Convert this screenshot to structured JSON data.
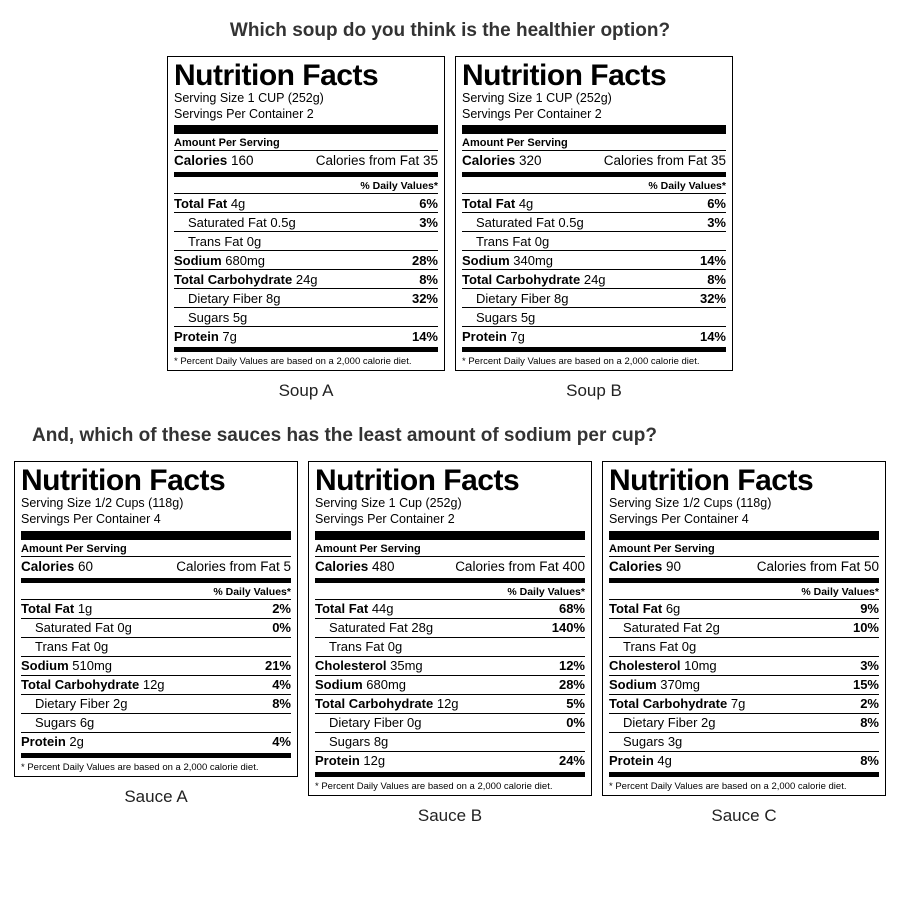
{
  "colors": {
    "text": "#000000",
    "bg": "#ffffff",
    "question": "#333333"
  },
  "q1": "Which soup do you think is the healthier option?",
  "q2": "And, which of these sauces has the least amount of sodium per cup?",
  "dv_header": "% Daily Values*",
  "amt_per": "Amount Per Serving",
  "footnote": "* Percent Daily Values are based on a 2,000 calorie diet.",
  "nf_title": "Nutrition Facts",
  "soups": [
    {
      "caption": "Soup A",
      "serving_size": "Serving Size 1 CUP (252g)",
      "servings_per": "Servings Per Container 2",
      "calories_label": "Calories",
      "calories": "160",
      "cal_fat": "Calories from Fat 35",
      "rows": [
        {
          "label": "Total Fat",
          "value": "4g",
          "dv": "6%",
          "bold": true,
          "indent": false,
          "rule": true
        },
        {
          "label": "Saturated Fat",
          "value": "0.5g",
          "dv": "3%",
          "bold": false,
          "indent": true,
          "rule": true
        },
        {
          "label": "Trans Fat",
          "value": "0g",
          "dv": "",
          "bold": false,
          "indent": true,
          "rule": true
        },
        {
          "label": "Sodium",
          "value": "680mg",
          "dv": "28%",
          "bold": true,
          "indent": false,
          "rule": true
        },
        {
          "label": "Total Carbohydrate",
          "value": "24g",
          "dv": "8%",
          "bold": true,
          "indent": false,
          "rule": true
        },
        {
          "label": "Dietary Fiber",
          "value": "8g",
          "dv": "32%",
          "bold": false,
          "indent": true,
          "rule": true
        },
        {
          "label": "Sugars",
          "value": "5g",
          "dv": "",
          "bold": false,
          "indent": true,
          "rule": true
        },
        {
          "label": "Protein",
          "value": "7g",
          "dv": "14%",
          "bold": true,
          "indent": false,
          "rule": false
        }
      ]
    },
    {
      "caption": "Soup B",
      "serving_size": "Serving Size 1 CUP (252g)",
      "servings_per": "Servings Per Container 2",
      "calories_label": "Calories",
      "calories": "320",
      "cal_fat": "Calories from Fat 35",
      "rows": [
        {
          "label": "Total Fat",
          "value": "4g",
          "dv": "6%",
          "bold": true,
          "indent": false,
          "rule": true
        },
        {
          "label": "Saturated Fat",
          "value": "0.5g",
          "dv": "3%",
          "bold": false,
          "indent": true,
          "rule": true
        },
        {
          "label": "Trans Fat",
          "value": "0g",
          "dv": "",
          "bold": false,
          "indent": true,
          "rule": true
        },
        {
          "label": "Sodium",
          "value": "340mg",
          "dv": "14%",
          "bold": true,
          "indent": false,
          "rule": true
        },
        {
          "label": "Total Carbohydrate",
          "value": "24g",
          "dv": "8%",
          "bold": true,
          "indent": false,
          "rule": true
        },
        {
          "label": "Dietary Fiber",
          "value": "8g",
          "dv": "32%",
          "bold": false,
          "indent": true,
          "rule": true
        },
        {
          "label": "Sugars",
          "value": "5g",
          "dv": "",
          "bold": false,
          "indent": true,
          "rule": true
        },
        {
          "label": "Protein",
          "value": "7g",
          "dv": "14%",
          "bold": true,
          "indent": false,
          "rule": false
        }
      ]
    }
  ],
  "sauces": [
    {
      "caption": "Sauce A",
      "serving_size": "Serving Size 1/2 Cups (118g)",
      "servings_per": "Servings Per Container 4",
      "calories_label": "Calories",
      "calories": "60",
      "cal_fat": "Calories from Fat 5",
      "rows": [
        {
          "label": "Total Fat",
          "value": "1g",
          "dv": "2%",
          "bold": true,
          "indent": false,
          "rule": true
        },
        {
          "label": "Saturated Fat",
          "value": "0g",
          "dv": "0%",
          "bold": false,
          "indent": true,
          "rule": true
        },
        {
          "label": "Trans Fat",
          "value": "0g",
          "dv": "",
          "bold": false,
          "indent": true,
          "rule": true
        },
        {
          "label": "Sodium",
          "value": "510mg",
          "dv": "21%",
          "bold": true,
          "indent": false,
          "rule": true
        },
        {
          "label": "Total Carbohydrate",
          "value": "12g",
          "dv": "4%",
          "bold": true,
          "indent": false,
          "rule": true
        },
        {
          "label": "Dietary Fiber",
          "value": "2g",
          "dv": "8%",
          "bold": false,
          "indent": true,
          "rule": true
        },
        {
          "label": "Sugars",
          "value": "6g",
          "dv": "",
          "bold": false,
          "indent": true,
          "rule": true
        },
        {
          "label": "Protein",
          "value": "2g",
          "dv": "4%",
          "bold": true,
          "indent": false,
          "rule": false
        }
      ]
    },
    {
      "caption": "Sauce B",
      "serving_size": "Serving Size 1 Cup (252g)",
      "servings_per": "Servings Per Container 2",
      "calories_label": "Calories",
      "calories": "480",
      "cal_fat": "Calories from Fat 400",
      "rows": [
        {
          "label": "Total Fat",
          "value": "44g",
          "dv": "68%",
          "bold": true,
          "indent": false,
          "rule": true
        },
        {
          "label": "Saturated Fat",
          "value": "28g",
          "dv": "140%",
          "bold": false,
          "indent": true,
          "rule": true
        },
        {
          "label": "Trans Fat",
          "value": "0g",
          "dv": "",
          "bold": false,
          "indent": true,
          "rule": true
        },
        {
          "label": "Cholesterol",
          "value": "35mg",
          "dv": "12%",
          "bold": true,
          "indent": false,
          "rule": true
        },
        {
          "label": "Sodium",
          "value": "680mg",
          "dv": "28%",
          "bold": true,
          "indent": false,
          "rule": true
        },
        {
          "label": "Total Carbohydrate",
          "value": "12g",
          "dv": "5%",
          "bold": true,
          "indent": false,
          "rule": true
        },
        {
          "label": "Dietary Fiber",
          "value": "0g",
          "dv": "0%",
          "bold": false,
          "indent": true,
          "rule": true
        },
        {
          "label": "Sugars",
          "value": "8g",
          "dv": "",
          "bold": false,
          "indent": true,
          "rule": true
        },
        {
          "label": "Protein",
          "value": "12g",
          "dv": "24%",
          "bold": true,
          "indent": false,
          "rule": false
        }
      ]
    },
    {
      "caption": "Sauce C",
      "serving_size": "Serving Size 1/2 Cups (118g)",
      "servings_per": "Servings Per Container 4",
      "calories_label": "Calories",
      "calories": "90",
      "cal_fat": "Calories from Fat 50",
      "rows": [
        {
          "label": "Total Fat",
          "value": "6g",
          "dv": "9%",
          "bold": true,
          "indent": false,
          "rule": true
        },
        {
          "label": "Saturated Fat",
          "value": "2g",
          "dv": "10%",
          "bold": false,
          "indent": true,
          "rule": true
        },
        {
          "label": "Trans Fat",
          "value": "0g",
          "dv": "",
          "bold": false,
          "indent": true,
          "rule": true
        },
        {
          "label": "Cholesterol",
          "value": "10mg",
          "dv": "3%",
          "bold": true,
          "indent": false,
          "rule": true
        },
        {
          "label": "Sodium",
          "value": "370mg",
          "dv": "15%",
          "bold": true,
          "indent": false,
          "rule": true
        },
        {
          "label": "Total Carbohydrate",
          "value": "7g",
          "dv": "2%",
          "bold": true,
          "indent": false,
          "rule": true
        },
        {
          "label": "Dietary Fiber",
          "value": "2g",
          "dv": "8%",
          "bold": false,
          "indent": true,
          "rule": true
        },
        {
          "label": "Sugars",
          "value": "3g",
          "dv": "",
          "bold": false,
          "indent": true,
          "rule": true
        },
        {
          "label": "Protein",
          "value": "4g",
          "dv": "8%",
          "bold": true,
          "indent": false,
          "rule": false
        }
      ]
    }
  ]
}
